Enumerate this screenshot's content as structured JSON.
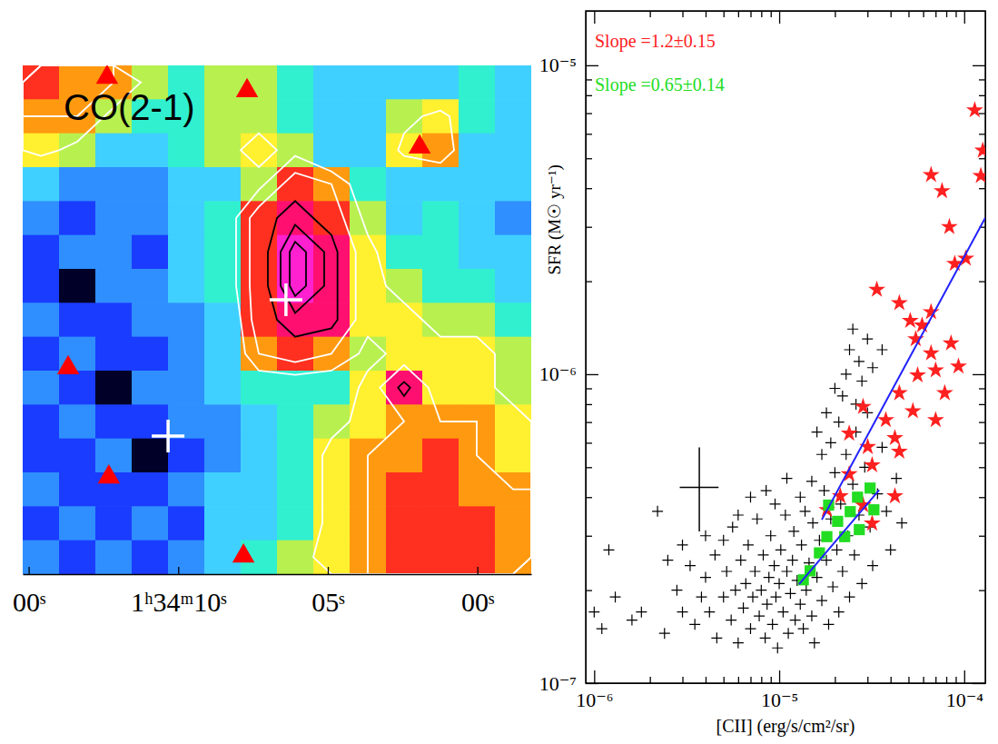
{
  "chart_data": [
    {
      "type": "heatmap",
      "title": "CO(2-1)",
      "xlim": [
        15.2,
        -1.8
      ],
      "xticks": [
        {
          "value": 15,
          "label": "00ˢ"
        },
        {
          "value": 10,
          "label": "1ʰ34ᵐ10ˢ"
        },
        {
          "value": 5,
          "label": "05ˢ"
        },
        {
          "value": 0,
          "label": "00ˢ"
        }
      ],
      "ylim": [
        0,
        15
      ],
      "tick_labels": "x",
      "zlim": [
        0,
        10
      ],
      "cells": [
        [
          8,
          7,
          7,
          5,
          4,
          5,
          5,
          4,
          3,
          3,
          3,
          3,
          4,
          3
        ],
        [
          7,
          7,
          5,
          4,
          4,
          5,
          5,
          4,
          3,
          3,
          5,
          6,
          4,
          3
        ],
        [
          6,
          5,
          3,
          3,
          4,
          5,
          6,
          5,
          3,
          3,
          6,
          7,
          3,
          3
        ],
        [
          3,
          2,
          2,
          2,
          3,
          3,
          5,
          8,
          7,
          4,
          3,
          3,
          3,
          3
        ],
        [
          2,
          1,
          2,
          2,
          3,
          4,
          8,
          9,
          8,
          5,
          3,
          4,
          3,
          2
        ],
        [
          1,
          2,
          2,
          1,
          3,
          4,
          8,
          10,
          9,
          6,
          4,
          4,
          3,
          3
        ],
        [
          1,
          0,
          2,
          2,
          3,
          4,
          8,
          10,
          9,
          6,
          5,
          4,
          4,
          3
        ],
        [
          2,
          1,
          1,
          2,
          2,
          3,
          8,
          9,
          9,
          6,
          6,
          5,
          5,
          4
        ],
        [
          1,
          2,
          1,
          1,
          2,
          3,
          7,
          8,
          7,
          5,
          6,
          6,
          6,
          5
        ],
        [
          2,
          1,
          0,
          2,
          2,
          3,
          4,
          4,
          4,
          6,
          9,
          6,
          6,
          5
        ],
        [
          1,
          2,
          1,
          1,
          2,
          2,
          3,
          4,
          5,
          6,
          7,
          7,
          7,
          6
        ],
        [
          1,
          1,
          2,
          0,
          1,
          2,
          3,
          4,
          6,
          7,
          7,
          8,
          7,
          6
        ],
        [
          2,
          1,
          1,
          1,
          2,
          3,
          3,
          4,
          6,
          7,
          8,
          8,
          7,
          7
        ],
        [
          1,
          2,
          1,
          2,
          1,
          3,
          3,
          4,
          6,
          7,
          8,
          8,
          8,
          7
        ],
        [
          2,
          1,
          2,
          1,
          2,
          3,
          4,
          5,
          6,
          7,
          8,
          8,
          8,
          7
        ]
      ],
      "contours": [
        {
          "color": "#ffffff",
          "levels": [
            5.5,
            7
          ]
        },
        {
          "color": "#000000",
          "levels": [
            8.5,
            9.2,
            9.7
          ]
        }
      ],
      "triangles": {
        "marker": "triangle",
        "color": "#ff0000",
        "x": [
          12.38,
          7.7,
          1.93,
          13.68,
          12.32,
          7.82
        ],
        "y": [
          14.65,
          14.25,
          12.59,
          6.08,
          2.86,
          0.53
        ]
      },
      "crosses": {
        "marker": "plus",
        "color": "#ffffff",
        "x": [
          6.4,
          10.34
        ],
        "y": [
          8.09,
          4.07
        ]
      }
    },
    {
      "type": "scatter",
      "log": true,
      "xlabel": "[CII] (erg/s/cm²/sr)",
      "ylabel": "SFR (M☉ yr⁻¹)",
      "xlim": [
        9e-07,
        0.00013
      ],
      "ylim": [
        1e-07,
        1.5e-05
      ],
      "xticks": [
        {
          "value": 1e-06,
          "label": "10⁻⁶"
        },
        {
          "value": 1e-05,
          "label": "10⁻⁵"
        },
        {
          "value": 0.0001,
          "label": "10⁻⁴"
        }
      ],
      "yticks": [
        {
          "value": 1e-07,
          "label": "10⁻⁷"
        },
        {
          "value": 1e-06,
          "label": "10⁻⁶"
        },
        {
          "value": 1e-05,
          "label": "10⁻⁵"
        }
      ],
      "xminor_ticks": [
        2e-06,
        3e-06,
        4e-06,
        5e-06,
        6e-06,
        7e-06,
        8e-06,
        9e-06,
        2e-05,
        3e-05,
        4e-05,
        5e-05,
        6e-05,
        7e-05,
        8e-05,
        9e-05
      ],
      "yminor_ticks": [
        2e-07,
        3e-07,
        4e-07,
        5e-07,
        6e-07,
        7e-07,
        8e-07,
        9e-07,
        2e-06,
        3e-06,
        4e-06,
        5e-06,
        6e-06,
        7e-06,
        8e-06,
        9e-06
      ],
      "series": [
        {
          "color": "#000000",
          "marker": "plus",
          "x": [
            1e-06,
            1.2e-06,
            1.1e-06,
            1.6e-06,
            1.8e-06,
            2.2e-06,
            2.4e-06,
            2.8e-06,
            3e-06,
            3.3e-06,
            3.5e-06,
            3.8e-06,
            4e-06,
            4.2e-06,
            4.5e-06,
            4.6e-06,
            5e-06,
            5.2e-06,
            5.5e-06,
            5.6e-06,
            5.8e-06,
            6e-06,
            6.2e-06,
            6.4e-06,
            6.6e-06,
            6.8e-06,
            7e-06,
            7.2e-06,
            7.4e-06,
            7.6e-06,
            7.8e-06,
            8e-06,
            8.2e-06,
            8.4e-06,
            8.6e-06,
            8.8e-06,
            9e-06,
            9.2e-06,
            9.4e-06,
            9.6e-06,
            9.8e-06,
            1e-05,
            1.02e-05,
            1.05e-05,
            1.08e-05,
            1.1e-05,
            1.12e-05,
            1.15e-05,
            1.18e-05,
            1.2e-05,
            1.22e-05,
            1.25e-05,
            1.3e-05,
            1.32e-05,
            1.35e-05,
            1.38e-05,
            1.4e-05,
            1.45e-05,
            1.5e-05,
            1.52e-05,
            1.55e-05,
            1.6e-05,
            1.65e-05,
            1.7e-05,
            1.75e-05,
            1.8e-05,
            1.85e-05,
            1.9e-05,
            1.95e-05,
            2e-05,
            2.05e-05,
            2.1e-05,
            2.15e-05,
            2.2e-05,
            2.3e-05,
            2.35e-05,
            2.4e-05,
            2.5e-05,
            2.55e-05,
            2.6e-05,
            2.7e-05,
            2.8e-05,
            2.9e-05,
            3e-05,
            3.1e-05,
            3.2e-05,
            3.4e-05,
            3.6e-05,
            3.8e-05,
            4e-05,
            4.3e-05,
            4.6e-05,
            1.9e-05,
            2.1e-05,
            2.2e-05,
            2.3e-05,
            2.4e-05,
            2.5e-05,
            2e-05,
            2.6e-05,
            2.7e-05,
            1.8e-05,
            1.7e-05,
            1.6e-05,
            2.8e-05,
            3.2e-05,
            1.5e-05,
            1.3e-05,
            1.1e-05,
            9.5e-06,
            8.5e-06,
            7e-06,
            6e-06,
            5e-06,
            4e-06,
            3e-06,
            2.5e-06,
            1.3e-06,
            3.6e-05,
            3e-05
          ],
          "values": [
            1.7e-07,
            2.7e-07,
            1.5e-07,
            1.6e-07,
            1.7e-07,
            3.6e-07,
            1.45e-07,
            2e-07,
            1.7e-07,
            2.4e-07,
            1.55e-07,
            1.9e-07,
            2.2e-07,
            1.7e-07,
            2.6e-07,
            1.4e-07,
            1.9e-07,
            2.3e-07,
            1.6e-07,
            3.2e-07,
            2e-07,
            1.35e-07,
            2.5e-07,
            1.75e-07,
            2.1e-07,
            2.8e-07,
            1.5e-07,
            1.9e-07,
            2.3e-07,
            3.4e-07,
            1.65e-07,
            2e-07,
            2.6e-07,
            1.4e-07,
            1.8e-07,
            2.2e-07,
            3e-07,
            1.55e-07,
            2.4e-07,
            1.9e-07,
            1.3e-07,
            2.1e-07,
            2.7e-07,
            1.7e-07,
            3.5e-07,
            2.3e-07,
            1.45e-07,
            1.95e-07,
            2.5e-07,
            3.1e-07,
            1.6e-07,
            2.15e-07,
            1.8e-07,
            2.8e-07,
            1.5e-07,
            3.6e-07,
            2e-07,
            2.45e-07,
            1.65e-07,
            3.3e-07,
            1.35e-07,
            2.2e-07,
            2.9e-07,
            1.85e-07,
            4.2e-07,
            2.5e-07,
            1.55e-07,
            3.4e-07,
            2.05e-07,
            4.8e-07,
            2.7e-07,
            1.7e-07,
            3.8e-07,
            2.3e-07,
            5.5e-07,
            3e-07,
            1.9e-07,
            4.4e-07,
            2.6e-07,
            6.5e-07,
            3.5e-07,
            2.1e-07,
            5e-07,
            7.5e-07,
            3.2e-07,
            2.4e-07,
            4.1e-07,
            5.8e-07,
            3.6e-07,
            2.7e-07,
            4.6e-07,
            3.3e-07,
            6e-07,
            7e-07,
            8.5e-07,
            1e-06,
            1.2e-06,
            1.4e-06,
            9e-07,
            8e-07,
            1.1e-06,
            7.5e-07,
            5.5e-07,
            6.5e-07,
            9.5e-07,
            1.05e-06,
            4.5e-07,
            4e-07,
            4.6e-07,
            3.8e-07,
            4.2e-07,
            4e-07,
            3.5e-07,
            2.9e-07,
            3e-07,
            2.8e-07,
            2.5e-07,
            1.9e-07,
            1.2e-06,
            1.3e-06
          ]
        },
        {
          "color": "#ff2020",
          "marker": "star",
          "x": [
            0.000114,
            0.000126,
            0.000123,
            6.62e-05,
            7.59e-05,
            8.31e-05,
            0.000102,
            8.89e-05,
            6.62e-05,
            8.49e-05,
            6.62e-05,
            9.31e-05,
            7.01e-05,
            7.85e-05,
            5.11e-05,
            3.37e-05,
            4.46e-05,
            5.92e-05,
            5.47e-05,
            3.77e-05,
            7.01e-05,
            5.28e-05,
            2.84e-05,
            2.39e-05,
            3.01e-05,
            4.46e-05,
            3.18e-05,
            2.39e-05,
            2.14e-05,
            4.22e-05,
            2.84e-05,
            1.81e-05,
            3.18e-05,
            5.6e-05,
            4.46e-05,
            4.22e-05
          ],
          "values": [
            7.16e-06,
            5.3e-06,
            4.39e-06,
            4.42e-06,
            3.92e-06,
            3e-06,
            2.37e-06,
            2.28e-06,
            1.59e-06,
            1.26e-06,
            1.17e-06,
            1.06e-06,
            1.03e-06,
            8.69e-07,
            1.49e-06,
            1.88e-06,
            1.7e-06,
            1.44e-06,
            1.3e-06,
            7.11e-07,
            7.11e-07,
            7.6e-07,
            7.85e-07,
            6.43e-07,
            5.82e-07,
            5.62e-07,
            5.08e-07,
            4.75e-07,
            4.03e-07,
            4.03e-07,
            3.77e-07,
            3.64e-07,
            3.29e-07,
            9.93e-07,
            8.69e-07,
            6.22e-07
          ]
        },
        {
          "color": "#22dd22",
          "marker": "square",
          "x": [
            1.35e-05,
            1.47e-05,
            1.65e-05,
            1.81e-05,
            2.07e-05,
            2.42e-05,
            2.65e-05,
            3.1e-05,
            3.25e-05,
            2.71e-05,
            2.26e-05,
            1.85e-05
          ],
          "values": [
            2.16e-07,
            2.31e-07,
            2.64e-07,
            2.98e-07,
            3.34e-07,
            3.59e-07,
            4e-07,
            4.28e-07,
            3.64e-07,
            3.14e-07,
            2.98e-07,
            3.77e-07
          ]
        }
      ],
      "fit_lines": [
        {
          "color": "#2222ff",
          "x": [
            1.7e-05,
            0.00013
          ],
          "values": [
            3.38e-07,
            3.21e-06
          ]
        },
        {
          "color": "#2222ff",
          "x": [
            1.28e-05,
            3.47e-05
          ],
          "values": [
            2.09e-07,
            4.22e-07
          ]
        }
      ],
      "error_bar": {
        "x": 3.7e-06,
        "y": 4.3e-07,
        "x_range": [
          2.9e-06,
          4.7e-06
        ],
        "y_range": [
          3.1e-07,
          5.8e-07
        ]
      },
      "annotations": [
        {
          "text": "Slope =1.2±0.15",
          "color": "#ff2020"
        },
        {
          "text": "Slope =0.65±0.14",
          "color": "#22dd22"
        }
      ]
    }
  ]
}
